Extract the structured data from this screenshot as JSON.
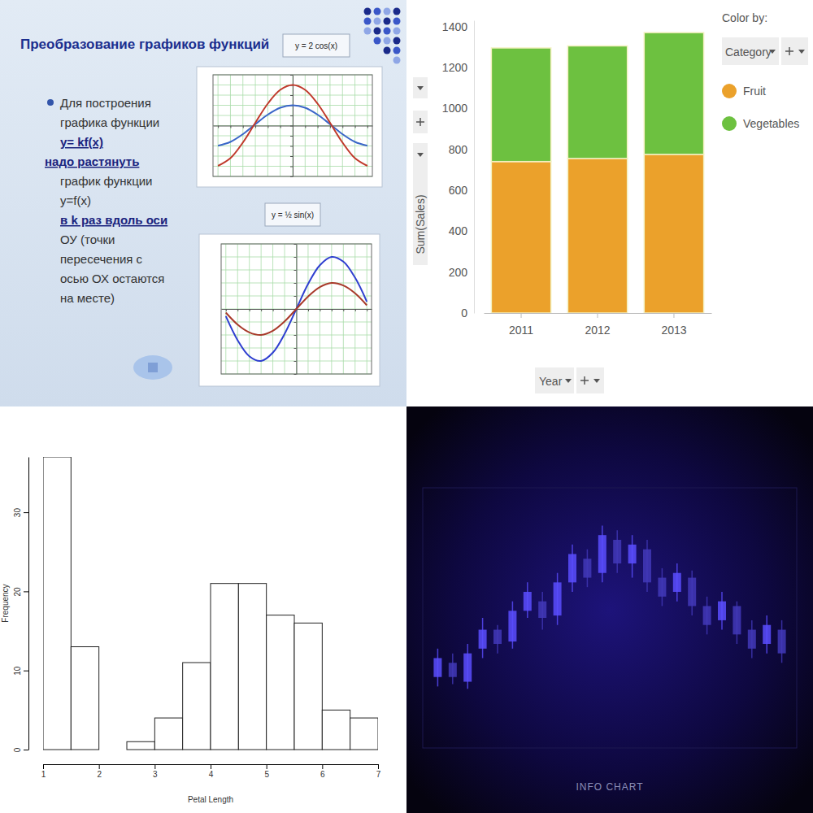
{
  "slide": {
    "title": "Преобразование графиков функций",
    "lines": [
      "Для построения",
      "графика функции",
      "y= kf(x)",
      "надо растянуть",
      "график функции",
      "y=f(x)",
      "в k раз вдоль оси",
      "ОУ (точки",
      "пересечения с",
      "осью ОХ остаются",
      "на месте)"
    ]
  },
  "chart_data": [
    {
      "type": "line",
      "title": "y = 2 cos(x)",
      "x": [
        -3,
        -2.5,
        -2,
        -1.5,
        -1,
        -0.5,
        0,
        0.5,
        1,
        1.5,
        2,
        2.5,
        3
      ],
      "series": [
        {
          "color": "#3a66c8",
          "values": [
            -0.99,
            -0.8,
            -0.42,
            0.07,
            0.54,
            0.88,
            1,
            0.88,
            0.54,
            0.07,
            -0.42,
            -0.8,
            -0.99
          ]
        },
        {
          "color": "#c0392b",
          "values": [
            -1.98,
            -1.6,
            -0.83,
            0.14,
            1.08,
            1.76,
            2,
            1.76,
            1.08,
            0.14,
            -0.83,
            -1.6,
            -1.98
          ]
        }
      ],
      "xlim": [
        -3.2,
        3.2
      ],
      "ylim": [
        -2.5,
        2.5
      ],
      "xticks": [
        -3,
        -2.5,
        -2,
        -1.5,
        -1,
        -0.5,
        0,
        0.5,
        1,
        1.5,
        2,
        2.5,
        3
      ],
      "yticks": [
        -2.5,
        -2,
        -1.5,
        -1,
        -0.5,
        0,
        0.5,
        1,
        1.5,
        2,
        2.5
      ],
      "grid": true,
      "tick_labels": false
    },
    {
      "type": "line",
      "title": "y = ½ sin(x)",
      "x": [
        -3,
        -2.5,
        -2,
        -1.5,
        -1,
        -0.5,
        0,
        0.5,
        1,
        1.5,
        2,
        2.5,
        3
      ],
      "series": [
        {
          "color": "#2f3fd0",
          "values": [
            -0.14,
            -0.6,
            -0.91,
            -1,
            -0.84,
            -0.48,
            0,
            0.48,
            0.84,
            1,
            0.91,
            0.6,
            0.14
          ]
        },
        {
          "color": "#a83a2a",
          "values": [
            -0.07,
            -0.3,
            -0.45,
            -0.5,
            -0.42,
            -0.24,
            0,
            0.24,
            0.42,
            0.5,
            0.45,
            0.3,
            0.07
          ]
        }
      ],
      "xlim": [
        -3.2,
        3.2
      ],
      "ylim": [
        -1.25,
        1.25
      ],
      "xticks": [
        -3,
        -2.5,
        -2,
        -1.5,
        -1,
        -0.5,
        0,
        0.5,
        1,
        1.5,
        2,
        2.5,
        3
      ],
      "yticks": [
        -1.25,
        -1,
        -0.75,
        -0.5,
        -0.25,
        0,
        0.25,
        0.5,
        0.75,
        1,
        1.25
      ],
      "grid": true,
      "tick_labels": false
    },
    {
      "type": "bar",
      "stacked": true,
      "categories": [
        "2011",
        "2012",
        "2013"
      ],
      "series": [
        {
          "name": "Fruit",
          "color": "#eba12b",
          "values": [
            740,
            755,
            775
          ]
        },
        {
          "name": "Vegetables",
          "color": "#6dc140",
          "values": [
            555,
            550,
            595
          ]
        }
      ],
      "ylim": [
        0,
        1430
      ],
      "yticks": [
        0,
        200,
        400,
        600,
        800,
        1000,
        1200,
        1400
      ],
      "y_label": "Sum(Sales)",
      "x_label": "Year",
      "legend": "right",
      "legend_title": "Color by:",
      "legend_field": "Category",
      "grid": false
    },
    {
      "type": "histogram",
      "bins": [
        1,
        1.5,
        2,
        2.5,
        3,
        3.5,
        4,
        4.5,
        5,
        5.5,
        6,
        6.5,
        7
      ],
      "values": [
        37,
        13,
        0,
        1,
        4,
        11,
        21,
        21,
        17,
        16,
        5,
        4
      ],
      "xlim": [
        1,
        7
      ],
      "ylim": [
        0,
        37
      ],
      "xticks": [
        1,
        2,
        3,
        4,
        5,
        6,
        7
      ],
      "yticks": [
        0,
        10,
        20,
        30
      ],
      "x_label": "Petal Length",
      "y_label": "Frequency",
      "color": "#ffffff"
    },
    {
      "type": "candlestick",
      "title": "INFO CHART",
      "x": [
        1,
        2,
        3,
        4,
        5,
        6,
        7,
        8,
        9,
        10,
        11,
        12,
        13,
        14,
        15,
        16,
        17,
        18,
        19,
        20,
        21,
        22,
        23,
        24
      ],
      "open": [
        30,
        36,
        28,
        42,
        50,
        45,
        58,
        62,
        56,
        70,
        80,
        74,
        88,
        78,
        84,
        72,
        66,
        72,
        60,
        54,
        60,
        50,
        44,
        50
      ],
      "close": [
        38,
        30,
        40,
        50,
        44,
        58,
        66,
        55,
        70,
        82,
        72,
        90,
        78,
        86,
        70,
        64,
        74,
        60,
        52,
        62,
        48,
        42,
        52,
        40
      ],
      "high": [
        42,
        40,
        44,
        55,
        52,
        62,
        70,
        66,
        74,
        86,
        84,
        94,
        92,
        90,
        88,
        76,
        78,
        75,
        64,
        66,
        62,
        54,
        56,
        54
      ],
      "low": [
        26,
        27,
        25,
        38,
        40,
        42,
        55,
        50,
        52,
        66,
        68,
        70,
        74,
        72,
        66,
        60,
        62,
        56,
        48,
        50,
        44,
        38,
        40,
        36
      ],
      "xlim": [
        0,
        25
      ],
      "ylim": [
        0,
        110
      ],
      "tick_labels": false,
      "color": "#5b4dff"
    }
  ]
}
